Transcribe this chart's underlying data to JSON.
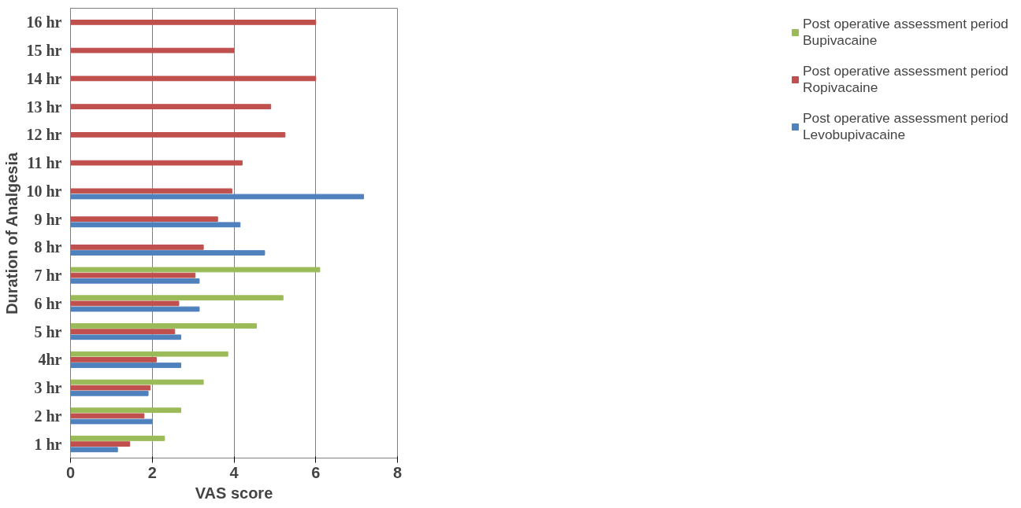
{
  "chart_data": {
    "type": "bar",
    "orientation": "horizontal",
    "xlabel": "VAS score",
    "ylabel": "Duration of Analgesia",
    "categories": [
      "16 hr",
      "15 hr",
      "14 hr",
      "13 hr",
      "12 hr",
      "11 hr",
      "10 hr",
      "9 hr",
      "8 hr",
      "7 hr",
      "6 hr",
      "5 hr",
      "4hr",
      "3 hr",
      "2 hr",
      "1 hr"
    ],
    "series": [
      {
        "name": "Post operative assessment period Bupivacaine",
        "color": "#9bbb59",
        "values": [
          null,
          null,
          null,
          null,
          null,
          null,
          null,
          null,
          null,
          6.1,
          5.2,
          4.55,
          3.85,
          3.25,
          2.7,
          2.3
        ]
      },
      {
        "name": "Post operative assessment period Ropivacaine",
        "color": "#c0504d",
        "values": [
          6.0,
          4.0,
          6.0,
          4.9,
          5.25,
          4.2,
          3.95,
          3.6,
          3.25,
          3.05,
          2.65,
          2.55,
          2.1,
          1.95,
          1.8,
          1.45
        ]
      },
      {
        "name": "Post operative assessment period Levobupivacaine",
        "color": "#4f81bd",
        "values": [
          null,
          null,
          null,
          null,
          null,
          null,
          7.17,
          4.15,
          4.75,
          3.15,
          3.15,
          2.7,
          2.7,
          1.9,
          2.0,
          1.15
        ]
      }
    ],
    "xlim": [
      0,
      8
    ],
    "xticks": [
      0,
      2,
      4,
      6,
      8
    ],
    "grid": "x",
    "legend": "right"
  }
}
